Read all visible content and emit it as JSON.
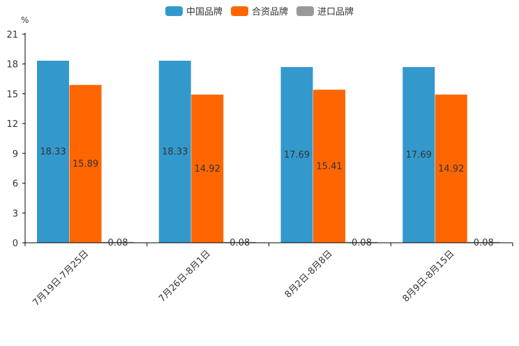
{
  "chart_data": {
    "type": "bar",
    "unit": "%",
    "categories": [
      "7月19日-7月25日",
      "7月26日-8月1日",
      "8月2日-8月8日",
      "8月9日-8月15日"
    ],
    "series": [
      {
        "name": "中国品牌",
        "color": "#3399cc",
        "values": [
          18.33,
          18.33,
          17.69,
          17.69
        ]
      },
      {
        "name": "合资品牌",
        "color": "#ff6600",
        "values": [
          15.89,
          14.92,
          15.41,
          14.92
        ]
      },
      {
        "name": "进口品牌",
        "color": "#999999",
        "values": [
          0.08,
          0.08,
          0.08,
          0.08
        ]
      }
    ],
    "yticks": [
      0,
      3,
      6,
      9,
      12,
      15,
      18,
      21
    ],
    "ylim": [
      0,
      21
    ],
    "legend_position": "top-center"
  }
}
